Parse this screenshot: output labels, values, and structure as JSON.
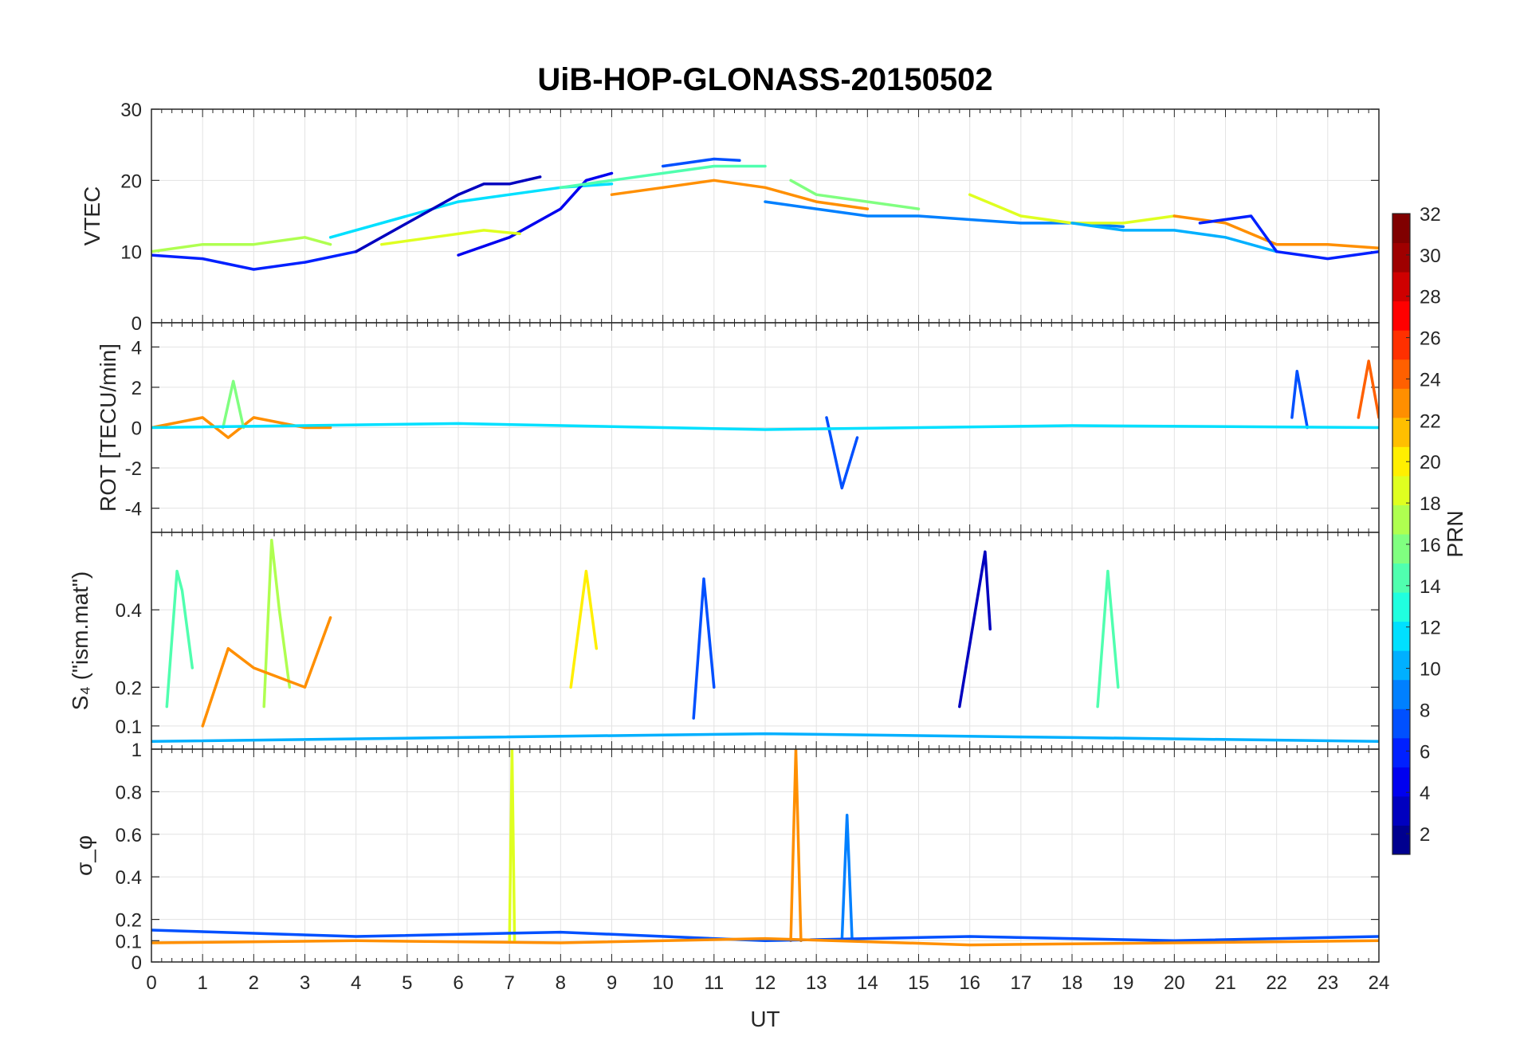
{
  "chart_data": {
    "type": "line",
    "title": "UiB-HOP-GLONASS-20150502",
    "xlabel": "UT",
    "xlim": [
      0,
      24
    ],
    "xticks": [
      "0",
      "1",
      "2",
      "3",
      "4",
      "5",
      "6",
      "7",
      "8",
      "9",
      "10",
      "11",
      "12",
      "13",
      "14",
      "15",
      "16",
      "17",
      "18",
      "19",
      "20",
      "21",
      "22",
      "23",
      "24"
    ],
    "grid": true,
    "colorbar": {
      "label": "PRN",
      "colormap": "jet",
      "lim": [
        1,
        32
      ],
      "ticks": [
        "2",
        "4",
        "6",
        "8",
        "10",
        "12",
        "14",
        "16",
        "18",
        "20",
        "22",
        "24",
        "26",
        "28",
        "30",
        "32"
      ],
      "colors": [
        "#00008f",
        "#0000bf",
        "#0000ef",
        "#0020ff",
        "#0050ff",
        "#0080ff",
        "#00b0ff",
        "#00e0ff",
        "#20ffdf",
        "#50ffaf",
        "#80ff80",
        "#afff50",
        "#dfff20",
        "#ffef00",
        "#ffbf00",
        "#ff8f00",
        "#ff6000",
        "#ff3000",
        "#ff0000",
        "#cf0000",
        "#9f0000",
        "#800000"
      ]
    },
    "panels": [
      {
        "ylabel": "VTEC",
        "ylim": [
          0,
          30
        ],
        "yticks": [
          "0",
          "10",
          "20",
          "30"
        ],
        "series": [
          {
            "color": "#0020ff",
            "x": [
              0,
              1,
              2,
              3,
              4
            ],
            "y": [
              9.5,
              9,
              7.5,
              8.5,
              10
            ]
          },
          {
            "color": "#00e0ff",
            "x": [
              3.5,
              5,
              6,
              7,
              8,
              9
            ],
            "y": [
              12,
              15,
              17,
              18,
              19,
              19.5
            ]
          },
          {
            "color": "#0000bf",
            "x": [
              4,
              5,
              6,
              6.5,
              7,
              7.6
            ],
            "y": [
              10,
              14,
              18,
              19.5,
              19.5,
              20.5
            ]
          },
          {
            "color": "#0000ef",
            "x": [
              6,
              7,
              8,
              8.5,
              9
            ],
            "y": [
              9.5,
              12,
              16,
              20,
              21
            ]
          },
          {
            "color": "#50ffaf",
            "x": [
              8,
              9,
              10,
              11,
              12
            ],
            "y": [
              19,
              20,
              21,
              22,
              22
            ]
          },
          {
            "color": "#0050ff",
            "x": [
              10,
              10.5,
              11,
              11.5
            ],
            "y": [
              22,
              22.5,
              23,
              22.8
            ]
          },
          {
            "color": "#ff8f00",
            "x": [
              9,
              10,
              11,
              12,
              13,
              14
            ],
            "y": [
              18,
              19,
              20,
              19,
              17,
              16
            ]
          },
          {
            "color": "#80ff80",
            "x": [
              12.5,
              13,
              14,
              15
            ],
            "y": [
              20,
              18,
              17,
              16
            ]
          },
          {
            "color": "#0080ff",
            "x": [
              12,
              13,
              14,
              15,
              16,
              17,
              18,
              19
            ],
            "y": [
              17,
              16,
              15,
              15,
              14.5,
              14,
              14,
              13.5
            ]
          },
          {
            "color": "#dfff20",
            "x": [
              16,
              17,
              18,
              19,
              20
            ],
            "y": [
              18,
              15,
              14,
              14,
              15
            ]
          },
          {
            "color": "#00b0ff",
            "x": [
              18,
              19,
              20,
              21,
              22
            ],
            "y": [
              14,
              13,
              13,
              12,
              10
            ]
          },
          {
            "color": "#ff8f00",
            "x": [
              20,
              21,
              22,
              23,
              24
            ],
            "y": [
              15,
              14,
              11,
              11,
              10.5
            ]
          },
          {
            "color": "#0020ff",
            "x": [
              20.5,
              21.5,
              22,
              23,
              24
            ],
            "y": [
              14,
              15,
              10,
              9,
              10
            ]
          },
          {
            "color": "#afff50",
            "x": [
              0,
              1,
              2,
              3,
              3.5
            ],
            "y": [
              10,
              11,
              11,
              12,
              11
            ]
          },
          {
            "color": "#dfff20",
            "x": [
              4.5,
              5.5,
              6.5,
              7.2
            ],
            "y": [
              11,
              12,
              13,
              12.5
            ]
          }
        ]
      },
      {
        "ylabel": "ROT [TECU/min]",
        "ylim": [
          -5.2,
          5.2
        ],
        "yticks": [
          "-4",
          "-2",
          "0",
          "2",
          "4"
        ],
        "series": [
          {
            "color": "#ff8f00",
            "x": [
              0,
              1,
              1.5,
              2,
              3,
              3.5
            ],
            "y": [
              0,
              0.5,
              -0.5,
              0.5,
              0,
              0
            ]
          },
          {
            "color": "#0050ff",
            "x": [
              13.2,
              13.5,
              13.8
            ],
            "y": [
              0.5,
              -3,
              -0.5
            ]
          },
          {
            "color": "#0050ff",
            "x": [
              22.3,
              22.4,
              22.6
            ],
            "y": [
              0.5,
              2.8,
              0
            ]
          },
          {
            "color": "#ff6000",
            "x": [
              23.6,
              23.8,
              24
            ],
            "y": [
              0.5,
              3.3,
              0.5
            ]
          },
          {
            "color": "#80ff80",
            "x": [
              1.4,
              1.6,
              1.8
            ],
            "y": [
              0,
              2.3,
              0
            ]
          },
          {
            "color": "#00e0ff",
            "x": [
              0,
              6,
              12,
              18,
              24
            ],
            "y": [
              0,
              0.2,
              -0.1,
              0.1,
              0
            ]
          }
        ]
      },
      {
        "ylabel": "S₄ (\"ism.mat\")",
        "ylim": [
          0.04,
          0.6
        ],
        "yticks": [
          "0.1",
          "0.2",
          "0.4"
        ],
        "series": [
          {
            "color": "#50ffaf",
            "x": [
              0.3,
              0.5,
              0.6,
              0.8
            ],
            "y": [
              0.15,
              0.5,
              0.45,
              0.25
            ]
          },
          {
            "color": "#afff50",
            "x": [
              2.2,
              2.35,
              2.5,
              2.7
            ],
            "y": [
              0.15,
              0.58,
              0.4,
              0.2
            ]
          },
          {
            "color": "#ffef00",
            "x": [
              8.2,
              8.5,
              8.7
            ],
            "y": [
              0.2,
              0.5,
              0.3
            ]
          },
          {
            "color": "#0000bf",
            "x": [
              15.8,
              16.3,
              16.4
            ],
            "y": [
              0.15,
              0.55,
              0.35
            ]
          },
          {
            "color": "#0050ff",
            "x": [
              10.6,
              10.8,
              11
            ],
            "y": [
              0.12,
              0.48,
              0.2
            ]
          },
          {
            "color": "#50ffaf",
            "x": [
              18.5,
              18.7,
              18.9
            ],
            "y": [
              0.15,
              0.5,
              0.2
            ]
          },
          {
            "color": "#ff8f00",
            "x": [
              1,
              1.5,
              2,
              3,
              3.5
            ],
            "y": [
              0.1,
              0.3,
              0.25,
              0.2,
              0.38
            ]
          },
          {
            "color": "#00b0ff",
            "x": [
              0,
              6,
              12,
              18,
              24
            ],
            "y": [
              0.06,
              0.07,
              0.08,
              0.07,
              0.06
            ]
          }
        ]
      },
      {
        "ylabel": "σ_φ",
        "ylim": [
          0,
          1
        ],
        "yticks": [
          "0",
          "0.1",
          "0.2",
          "0.4",
          "0.6",
          "0.8",
          "1"
        ],
        "series": [
          {
            "color": "#dfff20",
            "x": [
              7,
              7.05,
              7.1
            ],
            "y": [
              0.1,
              1,
              0.1
            ]
          },
          {
            "color": "#ff8f00",
            "x": [
              12.5,
              12.6,
              12.7
            ],
            "y": [
              0.1,
              1,
              0.1
            ]
          },
          {
            "color": "#0080ff",
            "x": [
              13.5,
              13.6,
              13.7
            ],
            "y": [
              0.1,
              0.69,
              0.1
            ]
          },
          {
            "color": "#0050ff",
            "x": [
              0,
              4,
              8,
              12,
              16,
              20,
              24
            ],
            "y": [
              0.15,
              0.12,
              0.14,
              0.1,
              0.12,
              0.1,
              0.12
            ]
          },
          {
            "color": "#ff8f00",
            "x": [
              0,
              4,
              8,
              12,
              16,
              20,
              24
            ],
            "y": [
              0.09,
              0.1,
              0.09,
              0.11,
              0.08,
              0.09,
              0.1
            ]
          }
        ]
      }
    ]
  }
}
